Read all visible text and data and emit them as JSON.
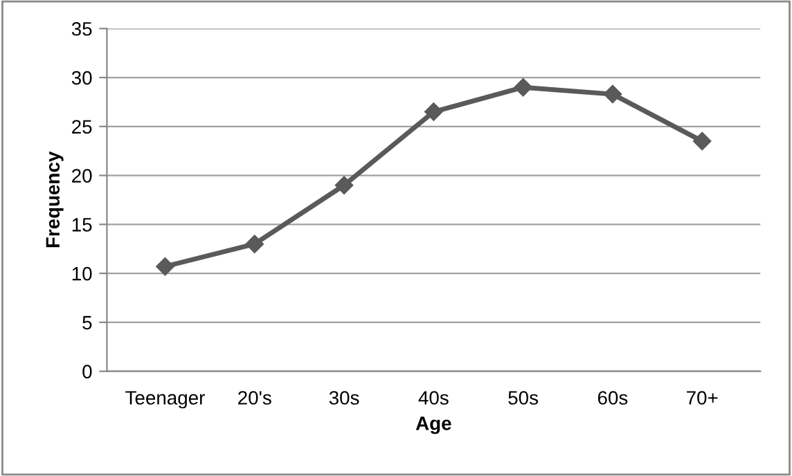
{
  "chart_data": {
    "type": "line",
    "xlabel": "Age",
    "ylabel": "Frequency",
    "categories": [
      "Teenager",
      "20's",
      "30s",
      "40s",
      "50s",
      "60s",
      "70+"
    ],
    "series": [
      {
        "color": "#5a5a5a",
        "values": [
          10.7,
          13.0,
          19.0,
          26.5,
          29.0,
          28.3,
          23.5
        ]
      }
    ],
    "ylim": [
      0,
      35
    ],
    "yticks": [
      0,
      5,
      10,
      15,
      20,
      25,
      30,
      35
    ],
    "grid": "y",
    "marker": "diamond",
    "line_style": "solid"
  }
}
